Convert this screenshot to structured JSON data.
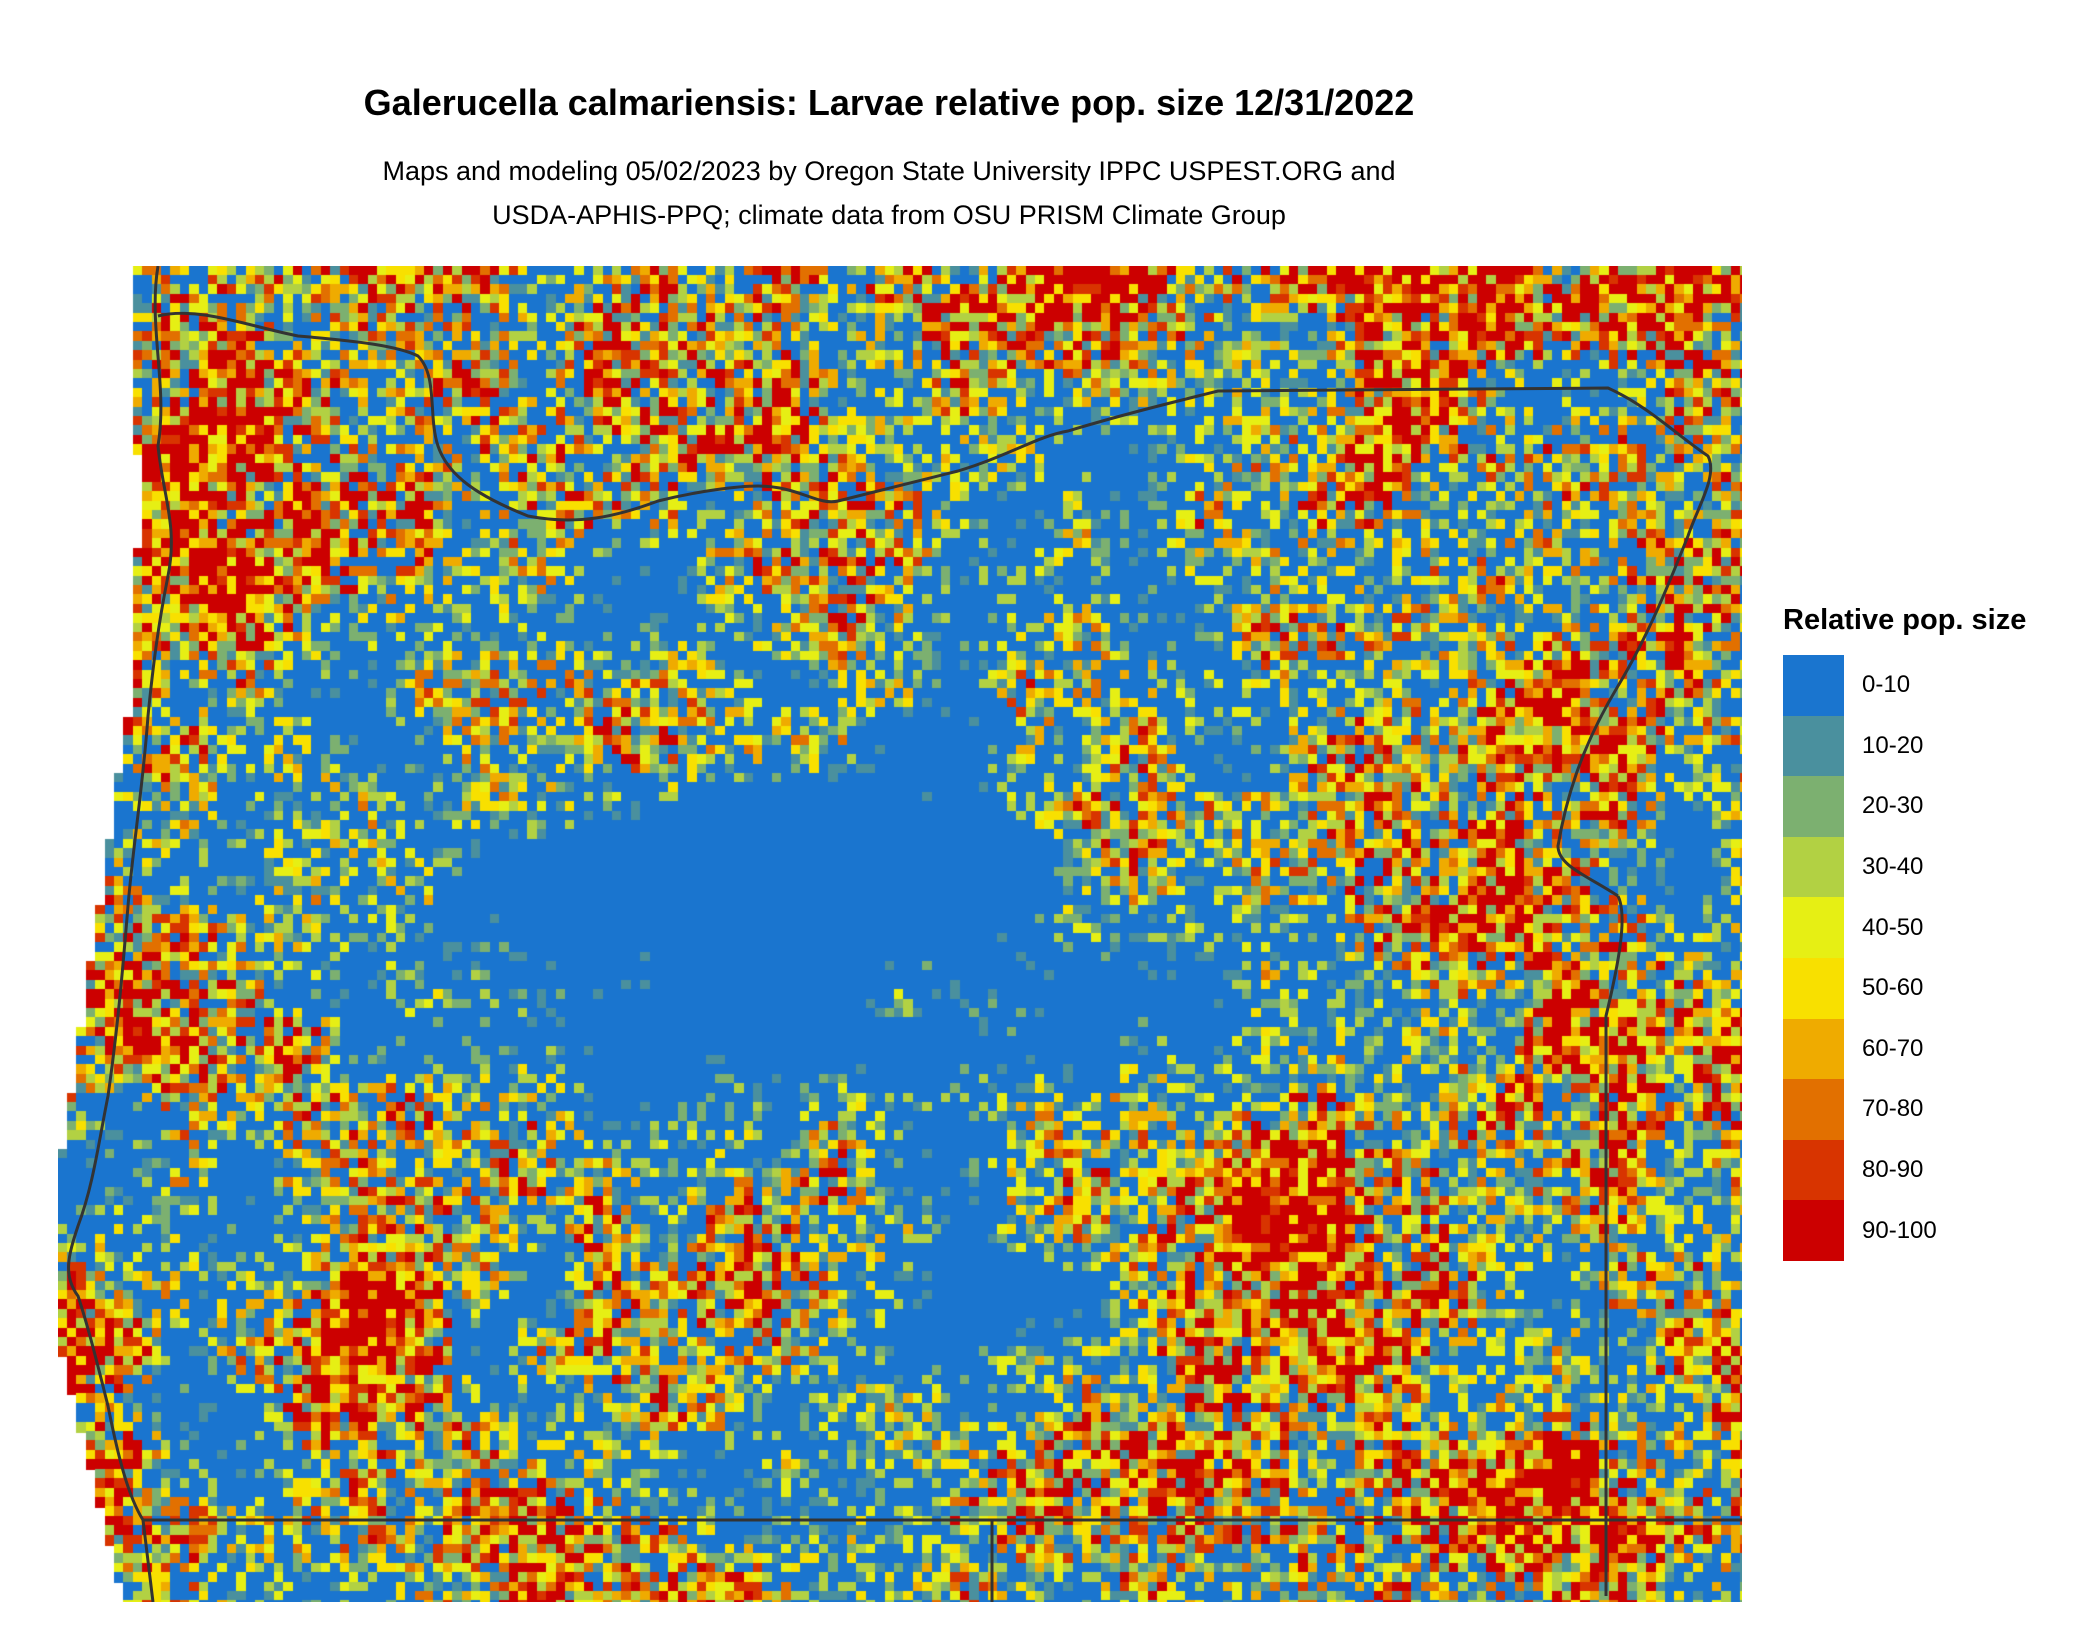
{
  "title": "Galerucella calmariensis: Larvae relative pop. size 12/31/2022",
  "subtitle_line1": "Maps and modeling 05/02/2023 by Oregon State University IPPC USPEST.ORG and",
  "subtitle_line2": "USDA-APHIS-PPQ; climate data from OSU PRISM Climate Group",
  "legend": {
    "title": "Relative pop. size",
    "items": [
      {
        "label": "0-10",
        "color": "#1a75cf"
      },
      {
        "label": "10-20",
        "color": "#4a909e"
      },
      {
        "label": "20-30",
        "color": "#7cb070"
      },
      {
        "label": "30-40",
        "color": "#b2d143"
      },
      {
        "label": "40-50",
        "color": "#e6ef14"
      },
      {
        "label": "50-60",
        "color": "#f8e000"
      },
      {
        "label": "60-70",
        "color": "#efab00"
      },
      {
        "label": "70-80",
        "color": "#e27000"
      },
      {
        "label": "80-90",
        "color": "#d83400"
      },
      {
        "label": "90-100",
        "color": "#cc0000"
      }
    ]
  },
  "boundary_color": "#333333"
}
